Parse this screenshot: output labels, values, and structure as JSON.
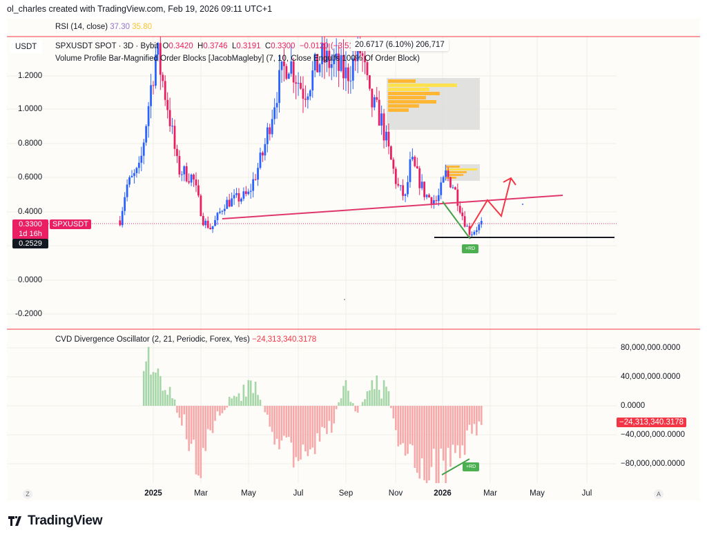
{
  "credit": "ol_charles created with TradingView.com, Feb 19, 2026 09:11 UTC+1",
  "rsi": {
    "label": "RSI (14, close)",
    "v1": "37.30",
    "v2": "35.80",
    "c1": "#9575cd",
    "c2": "#f7c631"
  },
  "main": {
    "currency": "USDT",
    "symbol": "SPXUSDT SPOT · 3D · Bybit",
    "o_lbl": "O",
    "o": "0.3420",
    "h_lbl": "H",
    "h": "0.3746",
    "l_lbl": "L",
    "l": "0.3191",
    "c_lbl": "C",
    "c": "0.3300",
    "change": "−0.0120 (−3.51%)",
    "tooltip": "20.6717 (6.10%) 206,717",
    "indicator": "Volume Profile Bar-Magnified Order Blocks [JacobMagleby] (7, 10, Close Engulfs 100% Of Order Block)",
    "price_axis": [
      "1.2000",
      "1.0000",
      "0.8000",
      "0.6000",
      "0.4000",
      "0.0000",
      "-0.2000"
    ],
    "last_price": "0.3300",
    "countdown": "1d 16h",
    "symbol_tag": "SPXUSDT",
    "crosshair_price": "0.2529",
    "rd_label": "+RD"
  },
  "cvd": {
    "label": "CVD Divergence Oscillator (2, 21, Periodic, Forex, Yes)",
    "value": "−24,313,340.3178",
    "axis": [
      "80,000,000.0000",
      "40,000,000.0000",
      "0.0000",
      "−40,000,000.0000",
      "−80,000,000.0000"
    ],
    "rd_label": "+RD"
  },
  "time_axis": [
    "2025",
    "Mar",
    "May",
    "Jul",
    "Sep",
    "Nov",
    "2026",
    "Mar",
    "May",
    "Jul"
  ],
  "btn_left": "Z",
  "btn_right": "A",
  "logo": "TradingView",
  "colors": {
    "up": "#2962ff",
    "down": "#e91e63",
    "cvd_pos": "#a5d6a7",
    "cvd_neg": "#f7a8a8",
    "trendline": "#e0356d",
    "accent": "#f23645"
  },
  "chart_data": [
    {
      "type": "candlestick",
      "timeframe": "3D",
      "approx_close_path": [
        [
          "2024-11-20",
          0.35
        ],
        [
          "2024-11-28",
          0.55
        ],
        [
          "2024-12-15",
          0.65
        ],
        [
          "2024-12-28",
          1.1
        ],
        [
          "2025-01-05",
          1.35
        ],
        [
          "2025-01-20",
          1.0
        ],
        [
          "2025-02-01",
          0.65
        ],
        [
          "2025-02-20",
          0.6
        ],
        [
          "2025-03-05",
          0.35
        ],
        [
          "2025-03-15",
          0.3
        ],
        [
          "2025-04-01",
          0.45
        ],
        [
          "2025-05-01",
          0.5
        ],
        [
          "2025-05-20",
          0.75
        ],
        [
          "2025-06-05",
          1.1
        ],
        [
          "2025-06-20",
          1.3
        ],
        [
          "2025-07-10",
          1.1
        ],
        [
          "2025-08-01",
          1.3
        ],
        [
          "2025-08-20",
          1.25
        ],
        [
          "2025-09-01",
          1.2
        ],
        [
          "2025-09-20",
          1.35
        ],
        [
          "2025-10-01",
          1.05
        ],
        [
          "2025-10-15",
          0.95
        ],
        [
          "2025-10-25",
          0.75
        ],
        [
          "2025-11-05",
          0.55
        ],
        [
          "2025-11-15",
          0.48
        ],
        [
          "2025-11-22",
          0.7
        ],
        [
          "2025-12-10",
          0.5
        ],
        [
          "2025-12-25",
          0.46
        ],
        [
          "2026-01-05",
          0.62
        ],
        [
          "2026-01-15",
          0.55
        ],
        [
          "2026-01-28",
          0.35
        ],
        [
          "2026-02-05",
          0.27
        ],
        [
          "2026-02-19",
          0.33
        ]
      ],
      "ylim": [
        -0.25,
        1.32
      ]
    },
    {
      "type": "bar",
      "name": "CVD Divergence Oscillator",
      "approx_path": [
        [
          "2024-12-20",
          90000000
        ],
        [
          "2025-01-10",
          60000000
        ],
        [
          "2025-01-25",
          10000000
        ],
        [
          "2025-02-10",
          -30000000
        ],
        [
          "2025-03-01",
          -90000000
        ],
        [
          "2025-03-20",
          -20000000
        ],
        [
          "2025-04-15",
          20000000
        ],
        [
          "2025-05-10",
          30000000
        ],
        [
          "2025-06-01",
          -40000000
        ],
        [
          "2025-07-01",
          -85000000
        ],
        [
          "2025-07-25",
          -50000000
        ],
        [
          "2025-08-15",
          -30000000
        ],
        [
          "2025-09-01",
          40000000
        ],
        [
          "2025-09-15",
          -15000000
        ],
        [
          "2025-10-05",
          35000000
        ],
        [
          "2025-10-25",
          20000000
        ],
        [
          "2025-11-05",
          -50000000
        ],
        [
          "2025-12-01",
          -100000000
        ],
        [
          "2025-12-20",
          -100000000
        ],
        [
          "2026-01-20",
          -80000000
        ],
        [
          "2026-02-19",
          -24313340
        ]
      ],
      "ylim": [
        -110000000,
        100000000
      ]
    }
  ]
}
